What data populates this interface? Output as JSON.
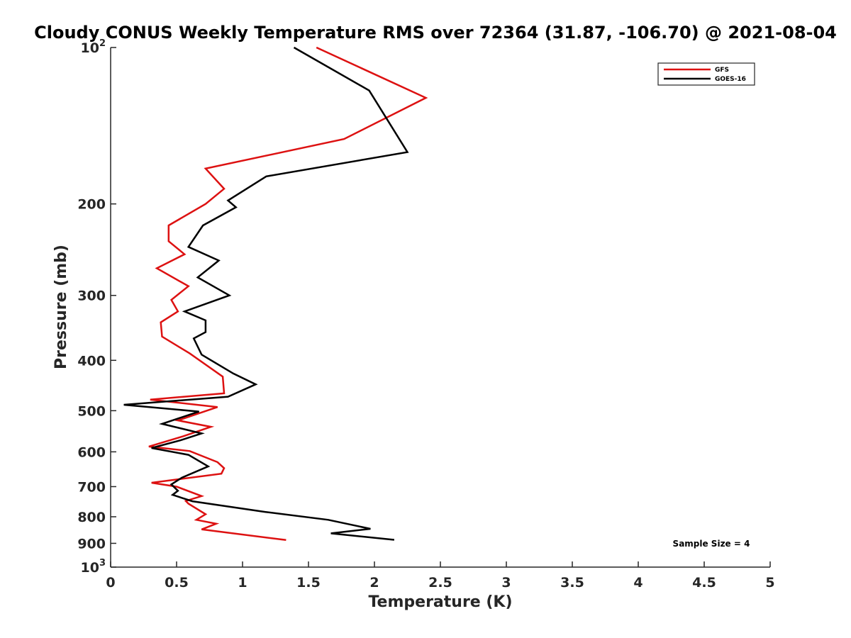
{
  "chart_data": {
    "type": "line",
    "title": "Cloudy CONUS Weekly Temperature RMS over 72364 (31.87, -106.70) @ 2021-08-04",
    "xlabel": "Temperature (K)",
    "ylabel": "Pressure (mb)",
    "xlim": [
      0,
      5
    ],
    "ylim": [
      100,
      1000
    ],
    "y_scale": "log",
    "y_reversed": true,
    "x_ticks": [
      0,
      0.5,
      1,
      1.5,
      2,
      2.5,
      3,
      3.5,
      4,
      4.5,
      5
    ],
    "x_tick_labels": [
      "0",
      "0.5",
      "1",
      "1.5",
      "2",
      "2.5",
      "3",
      "3.5",
      "4",
      "4.5",
      "5"
    ],
    "y_ticks": [
      {
        "value": 100,
        "label": "10",
        "exp": "2"
      },
      {
        "value": 200,
        "label": "200"
      },
      {
        "value": 300,
        "label": "300"
      },
      {
        "value": 400,
        "label": "400"
      },
      {
        "value": 500,
        "label": "500"
      },
      {
        "value": 600,
        "label": "600"
      },
      {
        "value": 700,
        "label": "700"
      },
      {
        "value": 800,
        "label": "800"
      },
      {
        "value": 900,
        "label": "900"
      },
      {
        "value": 1000,
        "label": "10",
        "exp": "3"
      }
    ],
    "legend_position": "top-right",
    "grid": false,
    "annotation": "Sample Size = 4",
    "series": [
      {
        "name": "GFS",
        "color": "#dd1111",
        "points": [
          [
            1.56,
            100
          ],
          [
            2.39,
            125
          ],
          [
            1.77,
            150
          ],
          [
            0.72,
            171
          ],
          [
            0.86,
            187
          ],
          [
            0.72,
            200
          ],
          [
            0.44,
            220
          ],
          [
            0.44,
            236
          ],
          [
            0.56,
            250
          ],
          [
            0.35,
            266
          ],
          [
            0.59,
            288
          ],
          [
            0.46,
            306
          ],
          [
            0.51,
            322
          ],
          [
            0.38,
            338
          ],
          [
            0.39,
            360
          ],
          [
            0.6,
            388
          ],
          [
            0.85,
            430
          ],
          [
            0.86,
            463
          ],
          [
            0.3,
            476
          ],
          [
            0.81,
            492
          ],
          [
            0.51,
            522
          ],
          [
            0.76,
            537
          ],
          [
            0.55,
            560
          ],
          [
            0.29,
            586
          ],
          [
            0.6,
            598
          ],
          [
            0.81,
            628
          ],
          [
            0.86,
            645
          ],
          [
            0.84,
            661
          ],
          [
            0.31,
            688
          ],
          [
            0.5,
            700
          ],
          [
            0.69,
            730
          ],
          [
            0.57,
            746
          ],
          [
            0.59,
            755
          ],
          [
            0.72,
            791
          ],
          [
            0.65,
            811
          ],
          [
            0.8,
            825
          ],
          [
            0.69,
            846
          ],
          [
            1.33,
            887
          ]
        ]
      },
      {
        "name": "GOES-16",
        "color": "#000000",
        "points": [
          [
            1.39,
            100
          ],
          [
            1.96,
            121
          ],
          [
            2.25,
            159
          ],
          [
            1.18,
            177
          ],
          [
            0.89,
            197
          ],
          [
            0.95,
            203
          ],
          [
            0.7,
            220
          ],
          [
            0.59,
            242
          ],
          [
            0.82,
            257
          ],
          [
            0.66,
            277
          ],
          [
            0.9,
            300
          ],
          [
            0.56,
            322
          ],
          [
            0.72,
            335
          ],
          [
            0.72,
            353
          ],
          [
            0.63,
            363
          ],
          [
            0.69,
            390
          ],
          [
            0.93,
            424
          ],
          [
            1.1,
            445
          ],
          [
            0.89,
            470
          ],
          [
            0.1,
            487
          ],
          [
            0.67,
            502
          ],
          [
            0.39,
            530
          ],
          [
            0.69,
            553
          ],
          [
            0.53,
            570
          ],
          [
            0.31,
            590
          ],
          [
            0.59,
            608
          ],
          [
            0.74,
            640
          ],
          [
            0.54,
            673
          ],
          [
            0.46,
            693
          ],
          [
            0.51,
            713
          ],
          [
            0.47,
            726
          ],
          [
            0.62,
            747
          ],
          [
            1.17,
            783
          ],
          [
            1.65,
            811
          ],
          [
            1.97,
            844
          ],
          [
            1.67,
            861
          ],
          [
            2.15,
            886
          ]
        ]
      }
    ]
  }
}
